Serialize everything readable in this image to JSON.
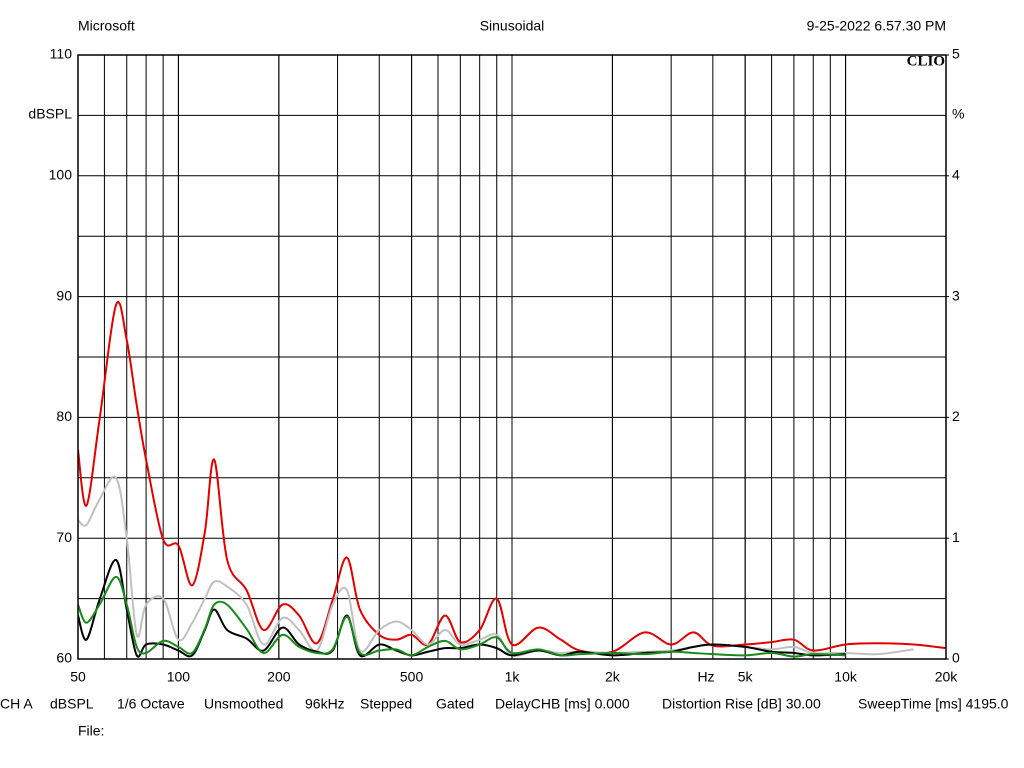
{
  "header": {
    "left": "Microsoft",
    "center": "Sinusoidal",
    "right": "9-25-2022 6.57.30 PM",
    "brand": "CLIO"
  },
  "chart_data": {
    "type": "line",
    "ylabel": "dBSPL",
    "y2label": "%",
    "xunit": "Hz",
    "log_x": true,
    "grid": true,
    "xlim": [
      50,
      20000
    ],
    "xticks": [
      50,
      100,
      200,
      500,
      {
        "value": 1000,
        "label": "1k"
      },
      {
        "value": 2000,
        "label": "2k"
      },
      {
        "value": 5000,
        "label": "5k"
      },
      {
        "value": 10000,
        "label": "10k"
      },
      {
        "value": 20000,
        "label": "20k"
      }
    ],
    "xgrid": [
      60,
      70,
      80,
      90,
      100,
      200,
      300,
      400,
      500,
      600,
      700,
      800,
      900,
      1000,
      2000,
      3000,
      4000,
      5000,
      6000,
      7000,
      8000,
      9000,
      10000
    ],
    "ylim": [
      60,
      110
    ],
    "yticks": [
      60,
      70,
      80,
      90,
      100,
      110
    ],
    "ygrid": [
      65,
      75,
      85,
      95,
      105
    ],
    "y2lim": [
      0,
      5
    ],
    "y2ticks": [
      0,
      1,
      2,
      3,
      4,
      5
    ],
    "x": [
      50,
      53,
      58,
      65,
      70,
      75,
      80,
      90,
      100,
      110,
      120,
      128,
      140,
      160,
      180,
      205,
      230,
      260,
      290,
      320,
      350,
      400,
      450,
      500,
      560,
      630,
      700,
      800,
      900,
      1000,
      1200,
      1400,
      1600,
      2000,
      2500,
      3000,
      3500,
      4000,
      5000,
      6000,
      7000,
      8000,
      10000,
      12500,
      16000,
      20000
    ],
    "series": [
      {
        "color": "#e00000",
        "axis": "y2",
        "values": [
          1.73,
          1.27,
          1.98,
          2.93,
          2.64,
          2.1,
          1.65,
          0.99,
          0.94,
          0.61,
          1.05,
          1.65,
          0.82,
          0.57,
          0.24,
          0.45,
          0.36,
          0.13,
          0.49,
          0.84,
          0.41,
          0.2,
          0.16,
          0.2,
          0.12,
          0.36,
          0.14,
          0.24,
          0.5,
          0.12,
          0.26,
          0.16,
          0.07,
          0.06,
          0.22,
          0.12,
          0.22,
          0.11,
          0.12,
          0.14,
          0.16,
          0.07,
          0.12,
          0.13,
          0.12,
          0.09
        ]
      },
      {
        "color": "#c0c0c0",
        "axis": "y2",
        "values": [
          1.15,
          1.11,
          1.32,
          1.5,
          1.0,
          0.2,
          0.45,
          0.5,
          0.16,
          0.3,
          0.5,
          0.64,
          0.6,
          0.45,
          0.12,
          0.34,
          0.24,
          0.07,
          0.45,
          0.57,
          0.07,
          0.24,
          0.31,
          0.24,
          0.12,
          0.24,
          0.12,
          0.16,
          0.2,
          0.03,
          0.07,
          0.05,
          0.06,
          0.05,
          0.06,
          0.07,
          0.1,
          0.12,
          0.1,
          0.08,
          0.1,
          0.05,
          0.05,
          0.04,
          0.08,
          null
        ]
      },
      {
        "color": "#000000",
        "axis": "y2",
        "values": [
          0.36,
          0.16,
          0.49,
          0.82,
          0.41,
          0.03,
          0.12,
          0.12,
          0.07,
          0.03,
          0.24,
          0.41,
          0.24,
          0.17,
          0.07,
          0.26,
          0.12,
          0.06,
          0.07,
          0.36,
          0.03,
          0.12,
          0.07,
          0.03,
          0.06,
          0.09,
          0.09,
          0.12,
          0.09,
          0.03,
          0.07,
          0.03,
          0.06,
          0.03,
          0.05,
          0.06,
          0.1,
          0.12,
          0.1,
          0.06,
          0.05,
          0.03,
          0.04,
          null,
          null,
          null
        ]
      },
      {
        "color": "#1a8a1a",
        "axis": "y2",
        "values": [
          0.45,
          0.3,
          0.45,
          0.68,
          0.45,
          0.1,
          0.05,
          0.15,
          0.1,
          0.05,
          0.25,
          0.45,
          0.45,
          0.25,
          0.05,
          0.2,
          0.1,
          0.05,
          0.08,
          0.35,
          0.05,
          0.07,
          0.08,
          0.03,
          0.1,
          0.15,
          0.08,
          0.12,
          0.18,
          0.05,
          0.08,
          0.03,
          0.04,
          0.05,
          0.04,
          0.06,
          0.05,
          0.04,
          0.03,
          0.05,
          0.02,
          0.04,
          0.03,
          null,
          null,
          null
        ]
      }
    ]
  },
  "footer": {
    "settings": [
      "CH A",
      "dBSPL",
      "1/6 Octave",
      "Unsmoothed",
      "96kHz",
      "Stepped",
      "Gated",
      "DelayCHB [ms] 0.000",
      "Distortion Rise [dB] 30.00",
      "SweepTime [ms] 4195.0"
    ],
    "file": "File:"
  }
}
